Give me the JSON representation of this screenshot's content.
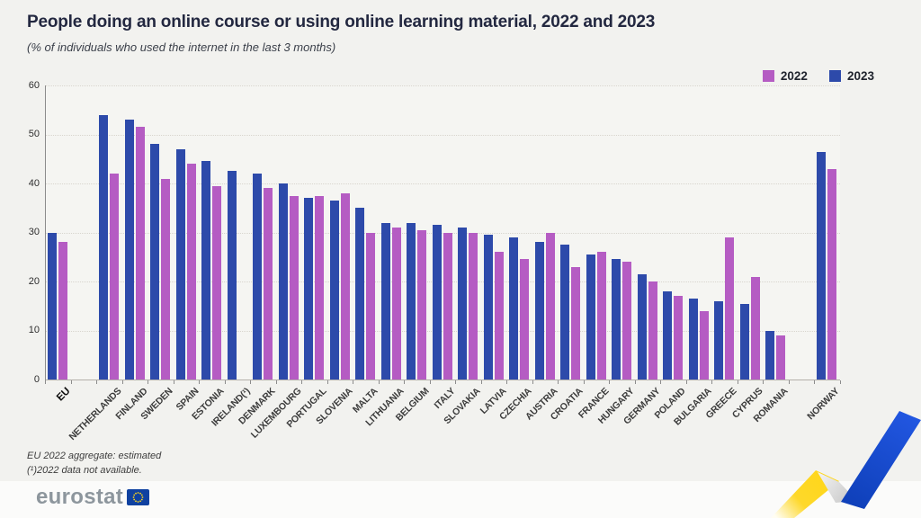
{
  "header": {
    "title": "People doing an online course or using online learning material, 2022 and 2023",
    "subtitle": "(% of individuals who used the internet in the last 3 months)"
  },
  "chart_data": {
    "type": "bar",
    "title": "People doing an online course or using online learning material, 2022 and 2023",
    "subtitle": "(% of individuals who used the internet in the last 3 months)",
    "ylabel": "",
    "ylim": [
      0,
      60
    ],
    "yticks": [
      0,
      10,
      20,
      30,
      40,
      50,
      60
    ],
    "grid": "horizontal-dotted",
    "legend_position": "top-right",
    "bar_order": [
      "2023",
      "2022"
    ],
    "categories": [
      "EU",
      "NETHERLANDS",
      "FINLAND",
      "SWEDEN",
      "SPAIN",
      "ESTONIA",
      "IRELAND(¹)",
      "DENMARK",
      "LUXEMBOURG",
      "PORTUGAL",
      "SLOVENIA",
      "MALTA",
      "LITHUANIA",
      "BELGIUM",
      "ITALY",
      "SLOVAKIA",
      "LATVIA",
      "CZECHIA",
      "AUSTRIA",
      "CROATIA",
      "FRANCE",
      "HUNGARY",
      "GERMANY",
      "POLAND",
      "BULGARIA",
      "GREECE",
      "CYPRUS",
      "ROMANIA",
      "NORWAY"
    ],
    "gap_after_indices": [
      0,
      27
    ],
    "series": [
      {
        "name": "2023",
        "color": "#2d4aaa",
        "values": [
          30,
          54,
          53,
          48,
          47,
          44.5,
          42.5,
          42,
          40,
          37,
          36.5,
          35,
          32,
          32,
          31.5,
          31,
          29.5,
          29,
          28,
          27.5,
          25.5,
          24.5,
          21.5,
          18,
          16.5,
          16,
          15.5,
          10,
          46.5
        ]
      },
      {
        "name": "2022",
        "color": "#b55cc3",
        "values": [
          28,
          42,
          51.5,
          41,
          44,
          39.5,
          null,
          39,
          37.5,
          37.5,
          38,
          30,
          31,
          30.5,
          30,
          30,
          26,
          24.5,
          30,
          23,
          26,
          24,
          20,
          17,
          14,
          29,
          21,
          9,
          43
        ]
      }
    ],
    "legend": [
      {
        "label": "2022",
        "color": "#b55cc3"
      },
      {
        "label": "2023",
        "color": "#2d4aaa"
      }
    ]
  },
  "footnotes": {
    "line1": "EU 2022 aggregate: estimated",
    "line2": "(¹)2022 data not available."
  },
  "footer": {
    "logo_text": "eurostat"
  },
  "colors": {
    "background": "#f2f2ef",
    "plot_background": "#f5f5f2",
    "bar_2022": "#b55cc3",
    "bar_2023": "#2d4aaa",
    "ribbon_yellow": "#ffd617",
    "ribbon_blue": "#1b4ed8",
    "flag_blue": "#0f41a0",
    "flag_stars": "#ffd617"
  }
}
